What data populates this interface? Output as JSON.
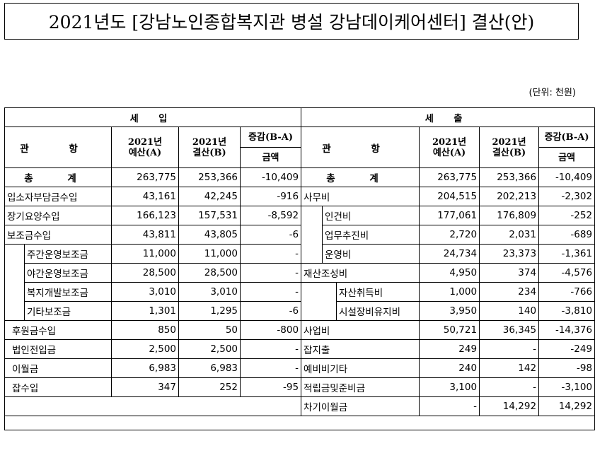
{
  "title": "2021년도 [강남노인종합복지관 병설 강남데이케어센터] 결산(안)",
  "unit": "(단위: 천원)",
  "headers": {
    "income": "세  입",
    "expense": "세  출",
    "item": "관  항",
    "budget_line1": "2021년",
    "budget_line2": "예산(A)",
    "settle_line1": "2021년",
    "settle_line2": "결산(B)",
    "diff": "증감(B-A)",
    "amount": "금액",
    "total": "총  계"
  },
  "income": {
    "total": [
      "263,775",
      "253,366",
      "-10,409"
    ],
    "rows": [
      {
        "label": "입소자부담금수입",
        "a": "43,161",
        "b": "42,245",
        "d": "-916"
      },
      {
        "label": "장기요양수입",
        "a": "166,123",
        "b": "157,531",
        "d": "-8,592"
      },
      {
        "label": "보조금수입",
        "a": "43,811",
        "b": "43,805",
        "d": "-6"
      },
      {
        "label": "주간운영보조금",
        "a": "11,000",
        "b": "11,000",
        "d": "-"
      },
      {
        "label": "야간운영보조금",
        "a": "28,500",
        "b": "28,500",
        "d": "-"
      },
      {
        "label": "복지개발보조금",
        "a": "3,010",
        "b": "3,010",
        "d": "-"
      },
      {
        "label": "기타보조금",
        "a": "1,301",
        "b": "1,295",
        "d": "-6"
      },
      {
        "label": "후원금수입",
        "a": "850",
        "b": "50",
        "d": "-800"
      },
      {
        "label": "법인전입금",
        "a": "2,500",
        "b": "2,500",
        "d": "-"
      },
      {
        "label": "이월금",
        "a": "6,983",
        "b": "6,983",
        "d": "-"
      },
      {
        "label": "잡수입",
        "a": "347",
        "b": "252",
        "d": "-95"
      }
    ]
  },
  "expense": {
    "total": [
      "263,775",
      "253,366",
      "-10,409"
    ],
    "rows": [
      {
        "label": "사무비",
        "a": "204,515",
        "b": "202,213",
        "d": "-2,302"
      },
      {
        "label": "인건비",
        "a": "177,061",
        "b": "176,809",
        "d": "-252"
      },
      {
        "label": "업무추진비",
        "a": "2,720",
        "b": "2,031",
        "d": "-689"
      },
      {
        "label": "운영비",
        "a": "24,734",
        "b": "23,373",
        "d": "-1,361"
      },
      {
        "label": "재산조성비",
        "a": "4,950",
        "b": "374",
        "d": "-4,576"
      },
      {
        "label": "자산취득비",
        "a": "1,000",
        "b": "234",
        "d": "-766"
      },
      {
        "label": "시설장비유지비",
        "a": "3,950",
        "b": "140",
        "d": "-3,810"
      },
      {
        "label": "사업비",
        "a": "50,721",
        "b": "36,345",
        "d": "-14,376"
      },
      {
        "label": "잡지출",
        "a": "249",
        "b": "-",
        "d": "-249"
      },
      {
        "label": "예비비기타",
        "a": "240",
        "b": "142",
        "d": "-98"
      },
      {
        "label": "적립금및준비금",
        "a": "3,100",
        "b": "-",
        "d": "-3,100"
      },
      {
        "label": "차기이월금",
        "a": "-",
        "b": "14,292",
        "d": "14,292"
      }
    ]
  }
}
